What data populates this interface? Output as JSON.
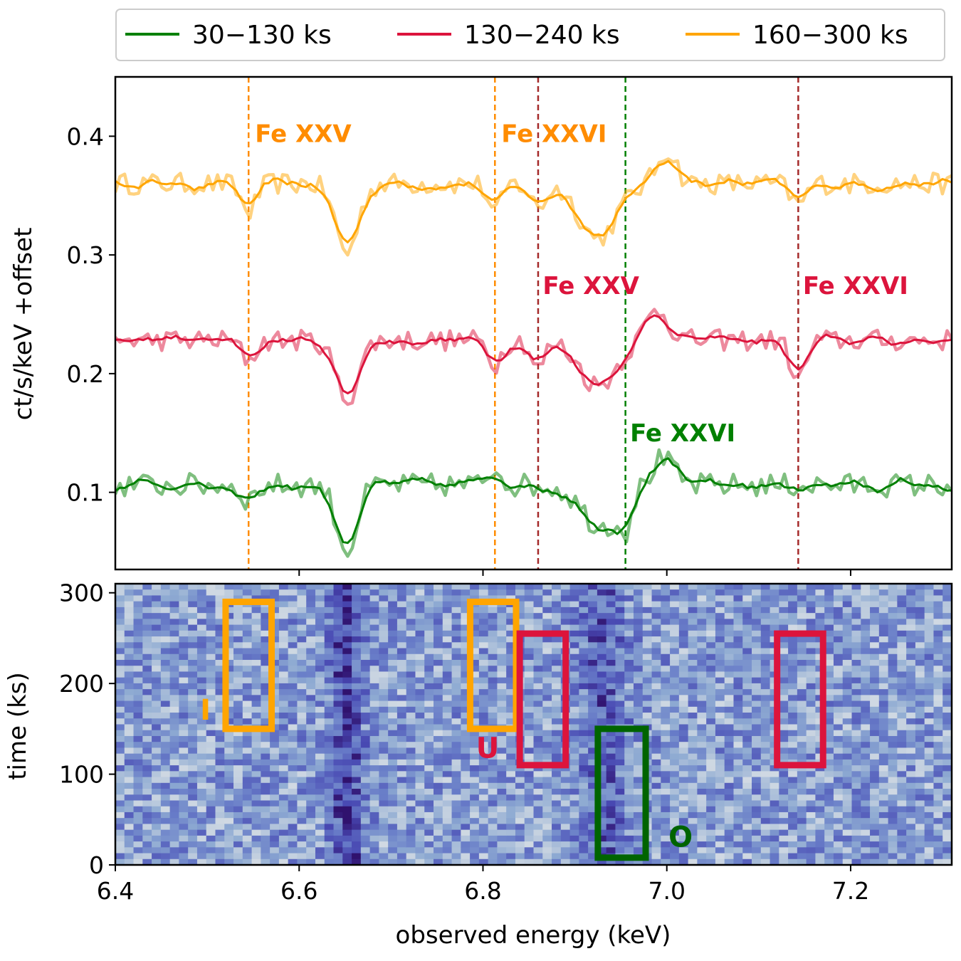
{
  "chart_data": [
    {
      "type": "line",
      "panel": "top",
      "title": "",
      "xlabel": "",
      "ylabel": "ct/s/keV +offset",
      "xlim": [
        6.4,
        7.31
      ],
      "ylim": [
        0.035,
        0.45
      ],
      "yticks": [
        0.1,
        0.2,
        0.3,
        0.4
      ],
      "ytick_labels": [
        "0.1",
        "0.2",
        "0.3",
        "0.4"
      ],
      "xticks": [
        6.6,
        6.8,
        7.0,
        7.2
      ],
      "legend": {
        "placement": "top-center-outside",
        "entries": [
          {
            "label": "30−130 ks",
            "color": "#008000"
          },
          {
            "label": "130−240 ks",
            "color": "#dc143c"
          },
          {
            "label": "160−300 ks",
            "color": "#ffa500"
          }
        ]
      },
      "series": [
        {
          "name": "160−300 ks",
          "color": "#ffa500",
          "baseline": 0.36,
          "features": [
            {
              "e": 6.545,
              "depth": 0.024,
              "width": 0.008
            },
            {
              "e": 6.652,
              "depth": 0.058,
              "width": 0.012
            },
            {
              "e": 6.813,
              "depth": 0.025,
              "width": 0.007
            },
            {
              "e": 6.86,
              "depth": 0.02,
              "width": 0.008
            },
            {
              "e": 6.925,
              "depth": 0.046,
              "width": 0.02
            },
            {
              "e": 7.0,
              "depth": -0.028,
              "width": 0.01
            },
            {
              "e": 7.143,
              "depth": 0.018,
              "width": 0.008
            }
          ],
          "noise_amplitude": 0.009
        },
        {
          "name": "130−240 ks",
          "color": "#dc143c",
          "baseline": 0.228,
          "features": [
            {
              "e": 6.545,
              "depth": 0.016,
              "width": 0.008
            },
            {
              "e": 6.652,
              "depth": 0.05,
              "width": 0.012
            },
            {
              "e": 6.813,
              "depth": 0.02,
              "width": 0.007
            },
            {
              "e": 6.86,
              "depth": 0.024,
              "width": 0.007
            },
            {
              "e": 6.925,
              "depth": 0.038,
              "width": 0.02
            },
            {
              "e": 6.99,
              "depth": -0.026,
              "width": 0.012
            },
            {
              "e": 7.143,
              "depth": 0.034,
              "width": 0.008
            }
          ],
          "noise_amplitude": 0.009
        },
        {
          "name": "30−130 ks",
          "color": "#008000",
          "baseline": 0.106,
          "features": [
            {
              "e": 6.545,
              "depth": 0.012,
              "width": 0.008
            },
            {
              "e": 6.652,
              "depth": 0.055,
              "width": 0.011
            },
            {
              "e": 6.813,
              "depth": -0.014,
              "width": 0.008
            },
            {
              "e": 6.93,
              "depth": 0.035,
              "width": 0.022
            },
            {
              "e": 6.955,
              "depth": 0.022,
              "width": 0.005
            },
            {
              "e": 6.995,
              "depth": -0.022,
              "width": 0.012
            }
          ],
          "noise_amplitude": 0.01
        }
      ],
      "vlines": [
        {
          "x": 6.545,
          "color": "#ff8c00"
        },
        {
          "x": 6.813,
          "color": "#ff8c00"
        },
        {
          "x": 6.86,
          "color": "#a52a2a"
        },
        {
          "x": 6.955,
          "color": "#008000"
        },
        {
          "x": 7.143,
          "color": "#a52a2a"
        }
      ],
      "annotations": [
        {
          "text": "Fe XXV",
          "x": 6.552,
          "y": 0.395,
          "color": "#ff8c00"
        },
        {
          "text": "Fe XXVI",
          "x": 6.82,
          "y": 0.395,
          "color": "#ff8c00"
        },
        {
          "text": "Fe XXV",
          "x": 6.865,
          "y": 0.267,
          "color": "#dc143c"
        },
        {
          "text": "Fe XXVI",
          "x": 7.148,
          "y": 0.267,
          "color": "#dc143c"
        },
        {
          "text": "Fe XXVI",
          "x": 6.96,
          "y": 0.143,
          "color": "#008000"
        }
      ]
    },
    {
      "type": "heatmap",
      "panel": "bottom",
      "title": "",
      "xlabel": "observed energy (keV)",
      "ylabel": "time (ks)",
      "xlim": [
        6.4,
        7.31
      ],
      "ylim": [
        0,
        310
      ],
      "xticks": [
        6.4,
        6.6,
        6.8,
        7.0,
        7.2
      ],
      "xtick_labels": [
        "6.4",
        "6.6",
        "6.8",
        "7.0",
        "7.2"
      ],
      "yticks": [
        0,
        100,
        200,
        300
      ],
      "ytick_labels": [
        "0",
        "100",
        "200",
        "300"
      ],
      "colormap": "blue-white-orange (diverging)",
      "dark_bands_keV": [
        6.652,
        6.93
      ],
      "boxes": [
        {
          "x0": 6.52,
          "x1": 6.57,
          "t0": 150,
          "t1": 290,
          "color": "#ffa500"
        },
        {
          "x0": 6.786,
          "x1": 6.836,
          "t0": 150,
          "t1": 290,
          "color": "#ffa500"
        },
        {
          "x0": 6.84,
          "x1": 6.89,
          "t0": 110,
          "t1": 255,
          "color": "#dc143c"
        },
        {
          "x0": 7.12,
          "x1": 7.17,
          "t0": 110,
          "t1": 255,
          "color": "#dc143c"
        },
        {
          "x0": 6.925,
          "x1": 6.977,
          "t0": 8,
          "t1": 150,
          "color": "#006400"
        }
      ],
      "box_labels": [
        {
          "text": "I",
          "x": 6.498,
          "t": 160,
          "color": "#ffa500"
        },
        {
          "text": "U",
          "x": 6.805,
          "t": 118,
          "color": "#dc143c"
        },
        {
          "text": "O",
          "x": 7.015,
          "t": 20,
          "color": "#006400"
        }
      ]
    }
  ]
}
